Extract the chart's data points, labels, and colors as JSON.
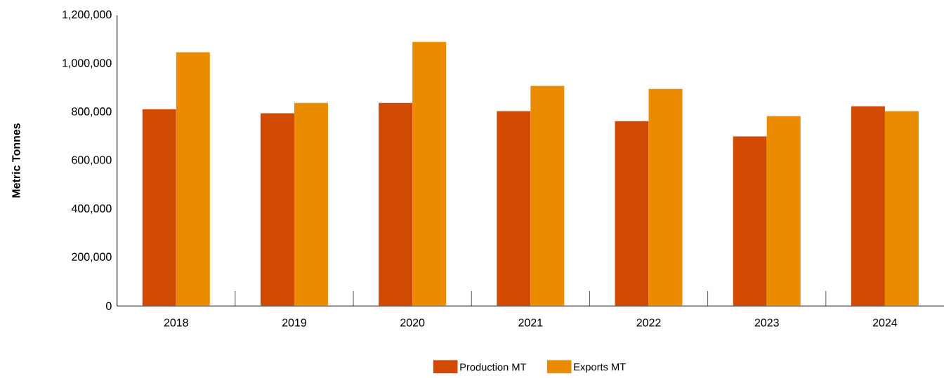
{
  "chart_data": {
    "type": "bar",
    "ylabel": "Metric Tonnes",
    "categories": [
      "2018",
      "2019",
      "2020",
      "2021",
      "2022",
      "2023",
      "2024"
    ],
    "series": [
      {
        "name": "Production MT",
        "color": "#d04a02",
        "values": [
          812000,
          795000,
          838000,
          804000,
          763000,
          700000,
          824000
        ]
      },
      {
        "name": "Exports MT",
        "color": "#eb8c00",
        "values": [
          1047000,
          838000,
          1090000,
          908000,
          896000,
          784000,
          804000
        ]
      }
    ],
    "ylim": [
      0,
      1200000
    ],
    "yticks": [
      {
        "value": 0,
        "label": "0"
      },
      {
        "value": 200000,
        "label": "200,000"
      },
      {
        "value": 400000,
        "label": "400,000"
      },
      {
        "value": 600000,
        "label": "600,000"
      },
      {
        "value": 800000,
        "label": "800,000"
      },
      {
        "value": 1000000,
        "label": "1,000,000"
      },
      {
        "value": 1200000,
        "label": "1,200,000"
      }
    ],
    "grid": false,
    "legend": "bottom"
  }
}
